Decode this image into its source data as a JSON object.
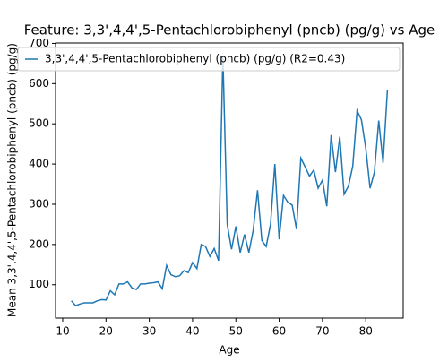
{
  "chart_data": {
    "type": "line",
    "title": "Feature: 3,3',4,4',5-Pentachlorobiphenyl (pncb) (pg/g) vs Age",
    "xlabel": "Age",
    "ylabel": "Mean 3,3',4,4',5-Pentachlorobiphenyl (pncb) (pg/g)",
    "x": [
      12,
      13,
      14,
      15,
      16,
      17,
      18,
      19,
      20,
      21,
      22,
      23,
      24,
      25,
      26,
      27,
      28,
      29,
      30,
      31,
      32,
      33,
      34,
      35,
      36,
      37,
      38,
      39,
      40,
      41,
      42,
      43,
      44,
      45,
      46,
      47,
      48,
      49,
      50,
      51,
      52,
      53,
      54,
      55,
      56,
      57,
      58,
      59,
      60,
      61,
      62,
      63,
      64,
      65,
      66,
      67,
      68,
      69,
      70,
      71,
      72,
      73,
      74,
      75,
      76,
      77,
      78,
      79,
      80,
      81,
      82,
      83,
      84,
      85
    ],
    "series": [
      {
        "name": "3,3',4,4',5-Pentachlorobiphenyl (pncb) (pg/g) (R2=0.43)",
        "color": "#1f77b4",
        "values": [
          60,
          48,
          52,
          55,
          55,
          55,
          60,
          63,
          62,
          85,
          75,
          102,
          102,
          107,
          92,
          88,
          102,
          102,
          104,
          105,
          107,
          90,
          148,
          125,
          120,
          122,
          135,
          130,
          155,
          140,
          200,
          195,
          170,
          190,
          160,
          670,
          250,
          188,
          245,
          180,
          225,
          180,
          235,
          335,
          210,
          195,
          250,
          400,
          213,
          322,
          305,
          298,
          238,
          415,
          393,
          370,
          385,
          340,
          360,
          295,
          472,
          380,
          468,
          325,
          345,
          395,
          533,
          510,
          440,
          340,
          380,
          508,
          403,
          583
        ]
      }
    ],
    "xlim": [
      8.35,
      88.65
    ],
    "xticks": [
      10,
      20,
      30,
      40,
      50,
      60,
      70,
      80
    ],
    "ylim": [
      17,
      701
    ],
    "yticks": [
      100,
      200,
      300,
      400,
      500,
      600,
      700
    ],
    "legend": "upper left"
  }
}
